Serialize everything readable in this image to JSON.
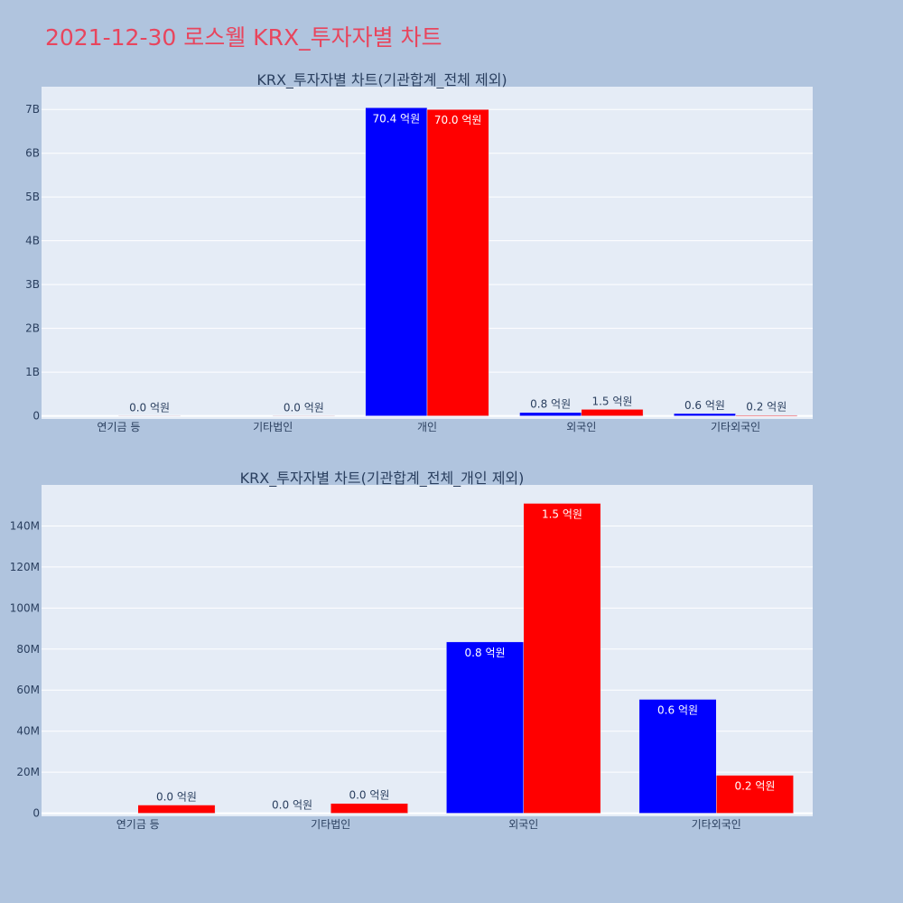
{
  "page": {
    "title": "2021-12-30 로스웰 KRX_투자자별 차트"
  },
  "colors": {
    "background": "#b0c4de",
    "plot_background": "#e5ecf6",
    "title": "#e8455d",
    "series_a": "#0000ff",
    "series_b": "#ff0000"
  },
  "chart_data": [
    {
      "type": "bar",
      "title": "KRX_투자자별 차트(기관합계_전체 제외)",
      "categories": [
        "연기금 등",
        "기타법인",
        "개인",
        "외국인",
        "기타외국인"
      ],
      "series": [
        {
          "color": "#0000ff",
          "values": [
            0,
            0,
            7040000000,
            80000000,
            55000000
          ],
          "labels": [
            "",
            "",
            "70.4 억원",
            "0.8 억원",
            "0.6 억원"
          ]
        },
        {
          "color": "#ff0000",
          "values": [
            4000000,
            5000000,
            7000000000,
            150000000,
            18000000
          ],
          "labels": [
            "0.0 억원",
            "0.0 억원",
            "70.0 억원",
            "1.5 억원",
            "0.2 억원"
          ]
        }
      ],
      "ylim": [
        -70000000,
        7520000000
      ],
      "yticks": [
        0,
        1000000000,
        2000000000,
        3000000000,
        4000000000,
        5000000000,
        6000000000,
        7000000000
      ],
      "ytick_labels": [
        "0",
        "1B",
        "2B",
        "3B",
        "4B",
        "5B",
        "6B",
        "7B"
      ],
      "grid": true
    },
    {
      "type": "bar",
      "title": "KRX_투자자별 차트(기관합계_전체_개인 제외)",
      "categories": [
        "연기금 등",
        "기타법인",
        "외국인",
        "기타외국인"
      ],
      "series": [
        {
          "color": "#0000ff",
          "values": [
            0,
            0,
            83500000,
            55500000
          ],
          "labels": [
            "",
            "0.0 억원",
            "0.8 억원",
            "0.6 억원"
          ]
        },
        {
          "color": "#ff0000",
          "values": [
            4000000,
            4800000,
            151000000,
            18500000
          ],
          "labels": [
            "0.0 억원",
            "0.0 억원",
            "1.5 억원",
            "0.2 억원"
          ]
        }
      ],
      "ylim": [
        -1500000,
        160000000
      ],
      "yticks": [
        0,
        20000000,
        40000000,
        60000000,
        80000000,
        100000000,
        120000000,
        140000000
      ],
      "ytick_labels": [
        "0",
        "20M",
        "40M",
        "60M",
        "80M",
        "100M",
        "120M",
        "140M"
      ],
      "grid": true
    }
  ]
}
